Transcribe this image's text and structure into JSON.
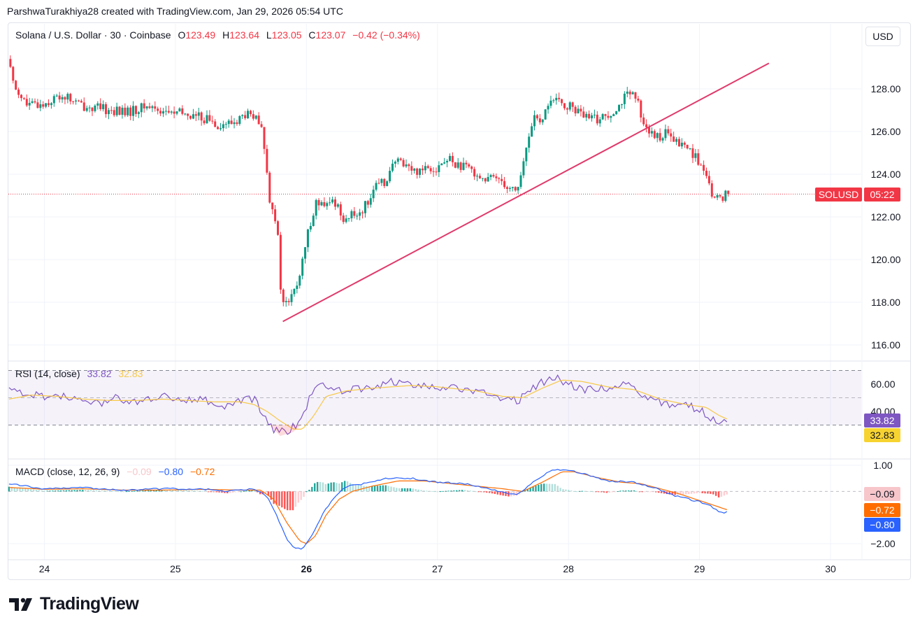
{
  "attribution": "ParshwaTurakhiya28 created with TradingView.com, Jan 29, 2026 05:54 UTC",
  "price_legend": {
    "symbol": "Solana / U.S. Dollar · 30 · Coinbase",
    "o_label": "O",
    "o_value": "123.49",
    "h_label": "H",
    "h_value": "123.64",
    "l_label": "L",
    "l_value": "123.05",
    "c_label": "C",
    "c_value": "123.07",
    "change": "−0.42 (−0.34%)"
  },
  "currency": "USD",
  "symbol_tag": "SOLUSD",
  "countdown_tag": "05:22",
  "rsi_legend": {
    "label": "RSI (14, close)",
    "rsi": "33.82",
    "ma": "32.83"
  },
  "macd_legend": {
    "label": "MACD (close, 12, 26, 9)",
    "hist": "−0.09",
    "macd": "−0.80",
    "signal": "−0.72"
  },
  "rsi_tags": {
    "rsi": "33.82",
    "ma": "32.83"
  },
  "macd_tags": {
    "hist": "−0.09",
    "signal": "−0.72",
    "macd": "−0.80"
  },
  "logo_text": "TradingView",
  "colors": {
    "up": "#089981",
    "down": "#f23645",
    "trendline": "#e03a6b",
    "rsi": "#7e57c2",
    "rsi_ma": "#f7c948",
    "macd": "#2962ff",
    "signal": "#ff6d00"
  },
  "chart_data": {
    "type": "candlestick",
    "x_tick_labels": [
      "24",
      "25",
      "26",
      "27",
      "28",
      "29",
      "30"
    ],
    "price_axis": {
      "ticks": [
        "128.00",
        "126.00",
        "124.00",
        "122.00",
        "120.00",
        "118.00",
        "116.00"
      ],
      "ylim": [
        115.3,
        129.3
      ]
    },
    "last_price": 123.07,
    "price_path": [
      [
        23.73,
        129.4
      ],
      [
        23.78,
        128.2
      ],
      [
        23.88,
        127.2
      ],
      [
        24.0,
        127.3
      ],
      [
        24.15,
        127.7
      ],
      [
        24.3,
        127.2
      ],
      [
        24.5,
        127.0
      ],
      [
        24.65,
        126.9
      ],
      [
        24.8,
        127.2
      ],
      [
        24.95,
        126.9
      ],
      [
        25.1,
        126.8
      ],
      [
        25.25,
        126.6
      ],
      [
        25.35,
        126.3
      ],
      [
        25.45,
        126.4
      ],
      [
        25.55,
        126.8
      ],
      [
        25.62,
        126.6
      ],
      [
        25.68,
        125.9
      ],
      [
        25.7,
        124.5
      ],
      [
        25.73,
        122.9
      ],
      [
        25.76,
        122.4
      ],
      [
        25.79,
        121.2
      ],
      [
        25.82,
        118.0
      ],
      [
        25.86,
        117.9
      ],
      [
        25.92,
        118.5
      ],
      [
        25.97,
        119.5
      ],
      [
        26.03,
        121.5
      ],
      [
        26.08,
        122.7
      ],
      [
        26.15,
        122.4
      ],
      [
        26.22,
        122.8
      ],
      [
        26.3,
        121.9
      ],
      [
        26.38,
        122.1
      ],
      [
        26.45,
        122.4
      ],
      [
        26.52,
        123.3
      ],
      [
        26.6,
        123.6
      ],
      [
        26.68,
        124.5
      ],
      [
        26.75,
        124.6
      ],
      [
        26.83,
        124.1
      ],
      [
        26.92,
        124.4
      ],
      [
        27.0,
        124.3
      ],
      [
        27.1,
        124.7
      ],
      [
        27.2,
        124.3
      ],
      [
        27.28,
        124.2
      ],
      [
        27.38,
        123.7
      ],
      [
        27.48,
        123.9
      ],
      [
        27.55,
        123.4
      ],
      [
        27.62,
        123.3
      ],
      [
        27.65,
        124.0
      ],
      [
        27.7,
        125.5
      ],
      [
        27.75,
        126.9
      ],
      [
        27.8,
        126.1
      ],
      [
        27.86,
        127.5
      ],
      [
        27.95,
        127.3
      ],
      [
        28.05,
        127.1
      ],
      [
        28.15,
        126.6
      ],
      [
        28.25,
        126.6
      ],
      [
        28.33,
        126.9
      ],
      [
        28.4,
        127.3
      ],
      [
        28.45,
        127.7
      ],
      [
        28.52,
        127.6
      ],
      [
        28.58,
        126.6
      ],
      [
        28.62,
        126.0
      ],
      [
        28.66,
        125.7
      ],
      [
        28.75,
        125.9
      ],
      [
        28.82,
        125.5
      ],
      [
        28.9,
        125.3
      ],
      [
        28.95,
        125.1
      ],
      [
        29.03,
        124.3
      ],
      [
        29.08,
        123.4
      ],
      [
        29.13,
        122.8
      ],
      [
        29.18,
        122.9
      ],
      [
        29.22,
        123.2
      ]
    ],
    "trendline": {
      "from": [
        25.82,
        117.1
      ],
      "to": [
        29.53,
        129.2
      ]
    },
    "rsi": {
      "axis_ticks": [
        "60.00",
        "40.00",
        "20.00"
      ],
      "ylim": [
        8,
        76
      ],
      "bands": [
        30,
        50,
        70
      ],
      "value": 33.82,
      "ma_value": 32.83,
      "path": [
        [
          23.73,
          58
        ],
        [
          23.85,
          53
        ],
        [
          23.95,
          52
        ],
        [
          24.05,
          50
        ],
        [
          24.15,
          51
        ],
        [
          24.3,
          47
        ],
        [
          24.45,
          46
        ],
        [
          24.55,
          50
        ],
        [
          24.7,
          47
        ],
        [
          24.85,
          49
        ],
        [
          24.95,
          52
        ],
        [
          25.05,
          47
        ],
        [
          25.15,
          50
        ],
        [
          25.25,
          47
        ],
        [
          25.35,
          44
        ],
        [
          25.45,
          46
        ],
        [
          25.55,
          50
        ],
        [
          25.62,
          48
        ],
        [
          25.68,
          35
        ],
        [
          25.73,
          28
        ],
        [
          25.8,
          25
        ],
        [
          25.86,
          26
        ],
        [
          25.93,
          31
        ],
        [
          26.0,
          44
        ],
        [
          26.05,
          57
        ],
        [
          26.15,
          60
        ],
        [
          26.25,
          55
        ],
        [
          26.35,
          56
        ],
        [
          26.45,
          57
        ],
        [
          26.55,
          59
        ],
        [
          26.65,
          62
        ],
        [
          26.75,
          62
        ],
        [
          26.85,
          57
        ],
        [
          26.95,
          59
        ],
        [
          27.05,
          57
        ],
        [
          27.15,
          57
        ],
        [
          27.25,
          54
        ],
        [
          27.35,
          54
        ],
        [
          27.45,
          51
        ],
        [
          27.55,
          48
        ],
        [
          27.62,
          48
        ],
        [
          27.7,
          57
        ],
        [
          27.78,
          60
        ],
        [
          27.88,
          66
        ],
        [
          27.95,
          62
        ],
        [
          28.05,
          58
        ],
        [
          28.15,
          56
        ],
        [
          28.25,
          57
        ],
        [
          28.35,
          58
        ],
        [
          28.45,
          60
        ],
        [
          28.52,
          57
        ],
        [
          28.6,
          49
        ],
        [
          28.7,
          47
        ],
        [
          28.8,
          45
        ],
        [
          28.9,
          45
        ],
        [
          29.0,
          41
        ],
        [
          29.08,
          36
        ],
        [
          29.13,
          30
        ],
        [
          29.18,
          33
        ],
        [
          29.22,
          35
        ]
      ],
      "ma_path": [
        [
          23.73,
          49
        ],
        [
          23.9,
          52
        ],
        [
          24.1,
          51
        ],
        [
          24.3,
          49
        ],
        [
          24.5,
          48
        ],
        [
          24.7,
          48
        ],
        [
          24.9,
          49
        ],
        [
          25.1,
          48
        ],
        [
          25.3,
          47
        ],
        [
          25.5,
          47
        ],
        [
          25.6,
          45
        ],
        [
          25.7,
          40
        ],
        [
          25.8,
          33
        ],
        [
          25.9,
          27
        ],
        [
          25.97,
          27
        ],
        [
          26.05,
          36
        ],
        [
          26.15,
          51
        ],
        [
          26.3,
          55
        ],
        [
          26.5,
          57
        ],
        [
          26.8,
          59
        ],
        [
          27.0,
          58
        ],
        [
          27.3,
          55
        ],
        [
          27.5,
          51
        ],
        [
          27.65,
          50
        ],
        [
          27.8,
          57
        ],
        [
          27.95,
          63
        ],
        [
          28.1,
          62
        ],
        [
          28.3,
          58
        ],
        [
          28.5,
          56
        ],
        [
          28.7,
          49
        ],
        [
          28.9,
          45
        ],
        [
          29.05,
          43
        ],
        [
          29.15,
          37
        ],
        [
          29.22,
          34
        ]
      ]
    },
    "macd": {
      "axis_ticks": [
        "1.00",
        "-2.00"
      ],
      "ylim": [
        -2.7,
        1.3
      ],
      "hist_value": -0.09,
      "macd_value": -0.8,
      "signal_value": -0.72,
      "macd_path": [
        [
          23.73,
          0.3
        ],
        [
          24.0,
          0.1
        ],
        [
          24.3,
          0.15
        ],
        [
          24.6,
          0.05
        ],
        [
          24.9,
          0.1
        ],
        [
          25.2,
          0.1
        ],
        [
          25.4,
          0.0
        ],
        [
          25.6,
          0.1
        ],
        [
          25.7,
          -0.2
        ],
        [
          25.78,
          -1.0
        ],
        [
          25.85,
          -1.8
        ],
        [
          25.9,
          -2.15
        ],
        [
          25.97,
          -2.2
        ],
        [
          26.03,
          -1.8
        ],
        [
          26.12,
          -0.9
        ],
        [
          26.2,
          -0.3
        ],
        [
          26.3,
          0.2
        ],
        [
          26.45,
          0.3
        ],
        [
          26.6,
          0.5
        ],
        [
          26.8,
          0.5
        ],
        [
          27.0,
          0.35
        ],
        [
          27.2,
          0.3
        ],
        [
          27.4,
          0.1
        ],
        [
          27.55,
          -0.1
        ],
        [
          27.62,
          -0.1
        ],
        [
          27.72,
          0.3
        ],
        [
          27.8,
          0.6
        ],
        [
          27.9,
          0.85
        ],
        [
          28.0,
          0.8
        ],
        [
          28.1,
          0.7
        ],
        [
          28.3,
          0.4
        ],
        [
          28.5,
          0.35
        ],
        [
          28.65,
          0.15
        ],
        [
          28.8,
          -0.15
        ],
        [
          29.0,
          -0.4
        ],
        [
          29.1,
          -0.6
        ],
        [
          29.15,
          -0.8
        ],
        [
          29.22,
          -0.8
        ]
      ],
      "signal_path": [
        [
          23.73,
          0.15
        ],
        [
          24.0,
          0.08
        ],
        [
          24.3,
          0.1
        ],
        [
          24.6,
          0.05
        ],
        [
          24.9,
          0.05
        ],
        [
          25.2,
          0.08
        ],
        [
          25.5,
          0.05
        ],
        [
          25.65,
          0.05
        ],
        [
          25.75,
          -0.3
        ],
        [
          25.85,
          -1.2
        ],
        [
          25.95,
          -1.9
        ],
        [
          26.0,
          -2.0
        ],
        [
          26.07,
          -1.7
        ],
        [
          26.15,
          -0.9
        ],
        [
          26.25,
          -0.3
        ],
        [
          26.35,
          0.0
        ],
        [
          26.5,
          0.2
        ],
        [
          26.7,
          0.4
        ],
        [
          26.9,
          0.4
        ],
        [
          27.1,
          0.3
        ],
        [
          27.3,
          0.2
        ],
        [
          27.5,
          0.1
        ],
        [
          27.65,
          0.0
        ],
        [
          27.8,
          0.35
        ],
        [
          27.95,
          0.75
        ],
        [
          28.05,
          0.75
        ],
        [
          28.2,
          0.55
        ],
        [
          28.4,
          0.35
        ],
        [
          28.55,
          0.3
        ],
        [
          28.7,
          0.1
        ],
        [
          28.85,
          -0.1
        ],
        [
          29.0,
          -0.35
        ],
        [
          29.15,
          -0.6
        ],
        [
          29.22,
          -0.72
        ]
      ]
    }
  }
}
